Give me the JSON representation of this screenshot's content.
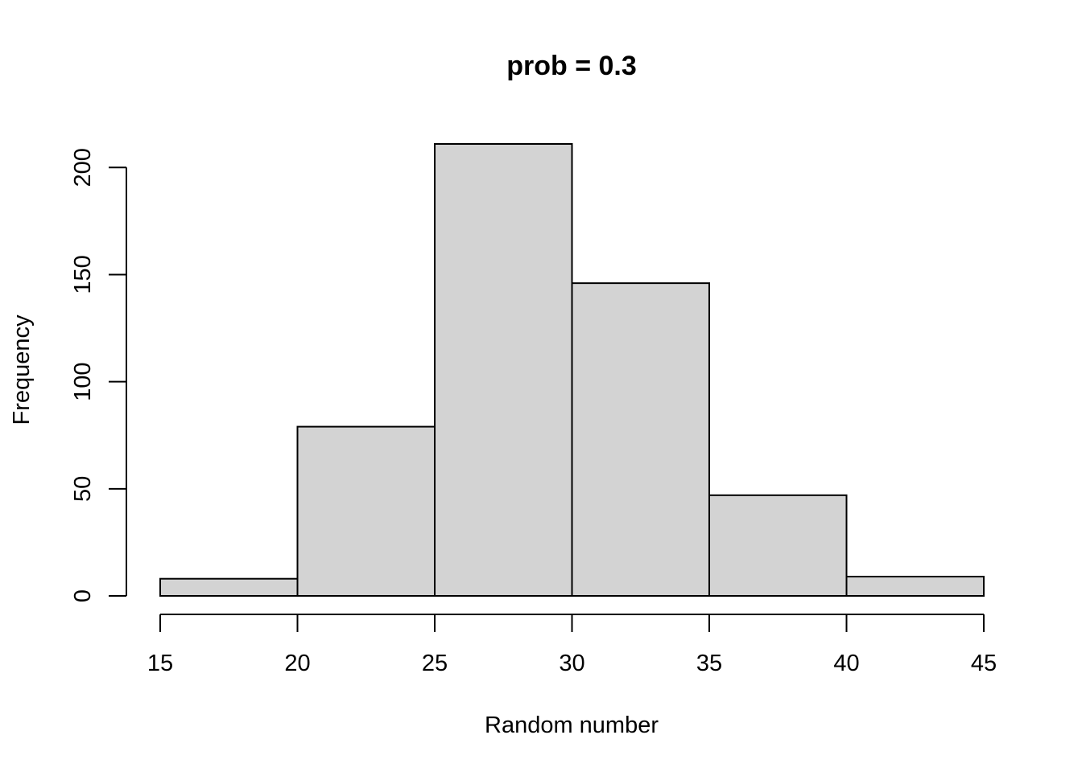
{
  "chart_data": {
    "type": "bar",
    "title": "prob = 0.3",
    "xlabel": "Random number",
    "ylabel": "Frequency",
    "bins": [
      {
        "start": 15,
        "end": 20,
        "value": 8
      },
      {
        "start": 20,
        "end": 25,
        "value": 79
      },
      {
        "start": 25,
        "end": 30,
        "value": 211
      },
      {
        "start": 30,
        "end": 35,
        "value": 146
      },
      {
        "start": 35,
        "end": 40,
        "value": 47
      },
      {
        "start": 40,
        "end": 45,
        "value": 9
      }
    ],
    "xlim": [
      15,
      45
    ],
    "ylim": [
      0,
      211
    ],
    "x_ticks": [
      15,
      20,
      25,
      30,
      35,
      40,
      45
    ],
    "y_ticks": [
      0,
      50,
      100,
      150,
      200
    ],
    "bar_color": "#d3d3d3",
    "border_color": "#000000",
    "grid": false
  }
}
